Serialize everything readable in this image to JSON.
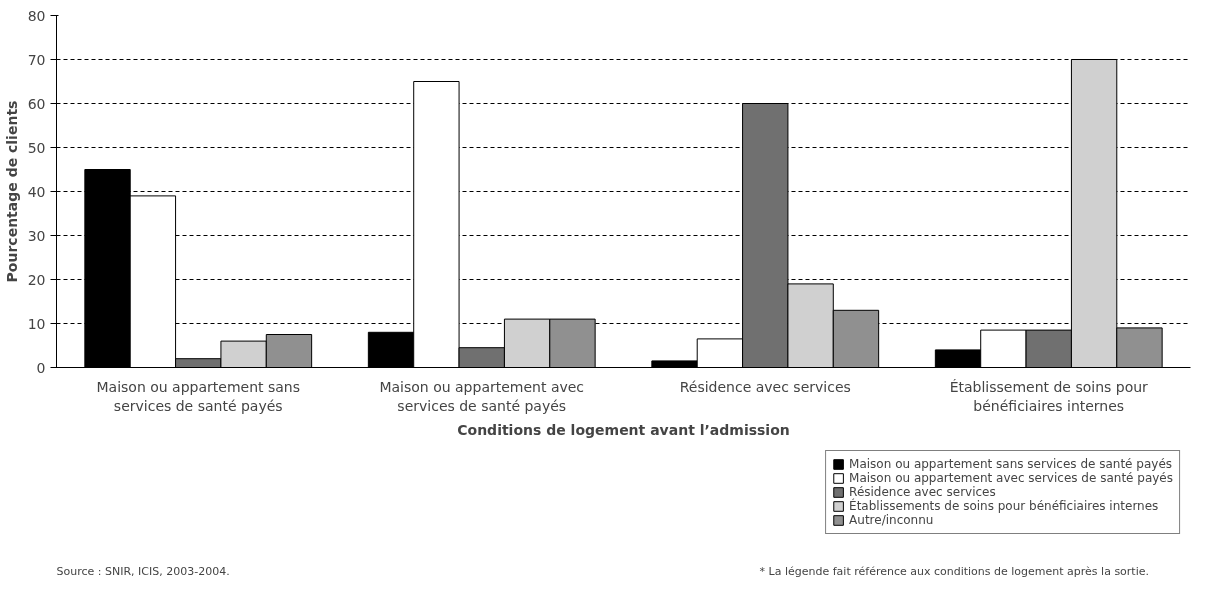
{
  "chart_data": {
    "type": "bar",
    "ylabel": "Pourcentage de clients",
    "xlabel": "Conditions de logement avant l’admission",
    "categories": [
      "Maison ou appartement sans services de santé payés",
      "Maison ou appartement avec services de santé payés",
      "Résidence avec services",
      "Établissement de soins pour bénéficiaires internes"
    ],
    "series": [
      {
        "name": "Maison ou appartement sans services de santé payés",
        "color": "#000000",
        "values": [
          45,
          8,
          1.5,
          4
        ]
      },
      {
        "name": "Maison ou appartement avec services de santé payés",
        "color": "#ffffff",
        "values": [
          39,
          65,
          6.5,
          8.5
        ]
      },
      {
        "name": "Résidence avec services",
        "color": "#707070",
        "values": [
          2,
          4.5,
          60,
          8.5
        ]
      },
      {
        "name": "Établissements de soins pour bénéficiaires internes",
        "color": "#d0d0d0",
        "values": [
          6,
          11,
          19,
          70
        ]
      },
      {
        "name": "Autre/inconnu",
        "color": "#909090",
        "values": [
          7.5,
          11,
          13,
          9
        ]
      }
    ],
    "ylim": [
      0,
      80
    ],
    "yticks": [
      0,
      10,
      20,
      30,
      40,
      50,
      60,
      70,
      80
    ],
    "grid": "y",
    "legend": "bottom right",
    "annotations": [
      "Source : SNIR, ICIS, 2003-2004.",
      "* La légende fait référence aux conditions de logement après la sortie."
    ]
  }
}
